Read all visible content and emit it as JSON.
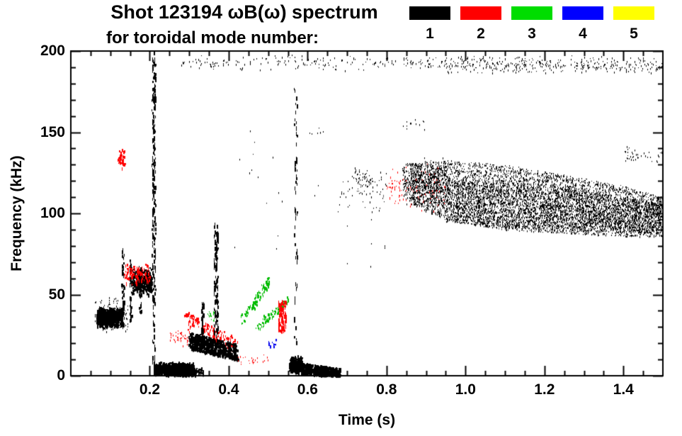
{
  "title": {
    "line1": "Shot 123194 ωB(ω) spectrum",
    "line2": "for toroidal mode number:"
  },
  "legend": {
    "modes": [
      {
        "label": "1",
        "color": "#000000"
      },
      {
        "label": "2",
        "color": "#ff0000"
      },
      {
        "label": "3",
        "color": "#00dd00"
      },
      {
        "label": "4",
        "color": "#0000ff"
      },
      {
        "label": "5",
        "color": "#ffff00"
      }
    ]
  },
  "chart_data": {
    "type": "scatter",
    "title": "Shot 123194 ωB(ω) spectrum for toroidal mode number 1-5",
    "xlabel": "Time (s)",
    "ylabel": "Frequency (kHz)",
    "xlim": [
      0,
      1.5
    ],
    "ylim": [
      0,
      200
    ],
    "xticks": [
      0.2,
      0.4,
      0.6,
      0.8,
      1.0,
      1.2,
      1.4
    ],
    "xtick_labels": [
      "0.2",
      "0.4",
      "0.6",
      "0.8",
      "1.0",
      "1.2",
      "1.4"
    ],
    "yticks": [
      0,
      50,
      100,
      150,
      200
    ],
    "ytick_labels": [
      "0",
      "50",
      "100",
      "150",
      "200"
    ],
    "xtick_minor_step": 0.05,
    "ytick_minor_step": 10,
    "grid": false,
    "legend_position": "top-right",
    "mode_colors": {
      "1": "#000000",
      "2": "#ff0000",
      "3": "#00bb00",
      "4": "#0000ee",
      "5": "#dddd00"
    },
    "clusters": [
      {
        "m": 1,
        "k": "blob",
        "t": [
          0.28,
          0.75
        ],
        "f": [
          188,
          198
        ],
        "n": 130,
        "sz": 1
      },
      {
        "m": 1,
        "k": "blob",
        "t": [
          0.75,
          0.95
        ],
        "f": [
          189,
          197
        ],
        "n": 70,
        "sz": 1
      },
      {
        "m": 1,
        "k": "blob",
        "t": [
          0.95,
          1.28
        ],
        "f": [
          186,
          198
        ],
        "n": 240,
        "sz": 1
      },
      {
        "m": 1,
        "k": "blob",
        "t": [
          1.28,
          1.5
        ],
        "f": [
          186,
          197
        ],
        "n": 150,
        "sz": 1
      },
      {
        "m": 1,
        "k": "blob",
        "t": [
          0.065,
          0.13
        ],
        "f": [
          30,
          43
        ],
        "n": 650,
        "sz": 3
      },
      {
        "m": 1,
        "k": "blob",
        "t": [
          0.06,
          0.145
        ],
        "f": [
          26,
          50
        ],
        "n": 140,
        "sz": 1
      },
      {
        "m": 1,
        "k": "vline",
        "t": [
          0.128,
          0.134
        ],
        "f": [
          30,
          80
        ],
        "n": 55,
        "sz": 2
      },
      {
        "m": 1,
        "k": "vline",
        "t": [
          0.148,
          0.154
        ],
        "f": [
          35,
          72
        ],
        "n": 45,
        "sz": 2
      },
      {
        "m": 1,
        "k": "vline",
        "t": [
          0.172,
          0.178
        ],
        "f": [
          40,
          68
        ],
        "n": 35,
        "sz": 2
      },
      {
        "m": 1,
        "k": "blob",
        "t": [
          0.155,
          0.205
        ],
        "f": [
          50,
          67
        ],
        "n": 320,
        "sz": 3
      },
      {
        "m": 2,
        "k": "blob",
        "t": [
          0.135,
          0.2
        ],
        "f": [
          55,
          72
        ],
        "n": 110,
        "sz": 2
      },
      {
        "m": 2,
        "k": "blob",
        "t": [
          0.118,
          0.136
        ],
        "f": [
          128,
          140
        ],
        "n": 40,
        "sz": 2
      },
      {
        "m": 1,
        "k": "vline",
        "t": [
          0.205,
          0.214
        ],
        "f": [
          62,
          200
        ],
        "n": 190,
        "sz": 2
      },
      {
        "m": 1,
        "k": "vline",
        "t": [
          0.206,
          0.213
        ],
        "f": [
          3,
          62
        ],
        "n": 35,
        "sz": 1
      },
      {
        "m": 1,
        "k": "blob",
        "t": [
          0.21,
          0.31
        ],
        "f": [
          0,
          9
        ],
        "n": 850,
        "sz": 3
      },
      {
        "m": 1,
        "k": "blob",
        "t": [
          0.25,
          0.335
        ],
        "f": [
          0,
          6
        ],
        "n": 220,
        "sz": 2
      },
      {
        "m": 2,
        "k": "diag",
        "from": [
          0.29,
          36
        ],
        "to": [
          0.42,
          19
        ],
        "j": 4,
        "n": 150,
        "sz": 2
      },
      {
        "m": 2,
        "k": "blob",
        "t": [
          0.25,
          0.3
        ],
        "f": [
          18,
          30
        ],
        "n": 50,
        "sz": 1
      },
      {
        "m": 1,
        "k": "diag",
        "from": [
          0.3,
          22
        ],
        "to": [
          0.42,
          15
        ],
        "j": 5,
        "n": 650,
        "sz": 3
      },
      {
        "m": 1,
        "k": "vline",
        "t": [
          0.33,
          0.336
        ],
        "f": [
          20,
          46
        ],
        "n": 40,
        "sz": 2
      },
      {
        "m": 1,
        "k": "vline",
        "t": [
          0.362,
          0.372
        ],
        "f": [
          25,
          95
        ],
        "n": 120,
        "sz": 2
      },
      {
        "m": 3,
        "k": "diag",
        "from": [
          0.43,
          34
        ],
        "to": [
          0.5,
          58
        ],
        "j": 3,
        "n": 85,
        "sz": 2
      },
      {
        "m": 3,
        "k": "diag",
        "from": [
          0.47,
          30
        ],
        "to": [
          0.55,
          48
        ],
        "j": 3,
        "n": 65,
        "sz": 2
      },
      {
        "m": 3,
        "k": "blob",
        "t": [
          0.345,
          0.365
        ],
        "f": [
          33,
          41
        ],
        "n": 18,
        "sz": 1
      },
      {
        "m": 2,
        "k": "vline",
        "t": [
          0.525,
          0.545
        ],
        "f": [
          28,
          47
        ],
        "n": 85,
        "sz": 2
      },
      {
        "m": 2,
        "k": "blob",
        "t": [
          0.42,
          0.5
        ],
        "f": [
          6,
          14
        ],
        "n": 25,
        "sz": 1
      },
      {
        "m": 4,
        "k": "blob",
        "t": [
          0.5,
          0.52
        ],
        "f": [
          17,
          23
        ],
        "n": 12,
        "sz": 2
      },
      {
        "m": 1,
        "k": "diag",
        "from": [
          0.555,
          6
        ],
        "to": [
          0.68,
          2
        ],
        "j": 3,
        "n": 650,
        "sz": 3
      },
      {
        "m": 1,
        "k": "blob",
        "t": [
          0.555,
          0.585
        ],
        "f": [
          2,
          13
        ],
        "n": 220,
        "sz": 3
      },
      {
        "m": 1,
        "k": "vline",
        "t": [
          0.565,
          0.573
        ],
        "f": [
          12,
          178
        ],
        "n": 55,
        "sz": 1
      },
      {
        "m": 1,
        "k": "blob",
        "t": [
          0.68,
          0.8
        ],
        "f": [
          100,
          130
        ],
        "n": 60,
        "sz": 1
      },
      {
        "m": 1,
        "k": "blob",
        "t": [
          0.72,
          0.765
        ],
        "f": [
          116,
          128
        ],
        "n": 45,
        "sz": 1
      },
      {
        "m": 2,
        "k": "blob",
        "t": [
          0.8,
          0.95
        ],
        "f": [
          100,
          132
        ],
        "n": 120,
        "sz": 1
      },
      {
        "m": 1,
        "k": "blob",
        "t": [
          0.84,
          0.95
        ],
        "f": [
          104,
          135
        ],
        "n": 420,
        "sz": 1
      },
      {
        "m": 1,
        "k": "band",
        "bp": [
          [
            0.86,
            106,
            131
          ],
          [
            0.95,
            96,
            133
          ],
          [
            1.1,
            90,
            130
          ],
          [
            1.25,
            88,
            124
          ],
          [
            1.4,
            86,
            117
          ],
          [
            1.5,
            86,
            110
          ]
        ],
        "n": 4800,
        "sz": 1
      },
      {
        "m": 1,
        "k": "band",
        "bp": [
          [
            0.95,
            95,
            121
          ],
          [
            1.2,
            90,
            118
          ],
          [
            1.5,
            88,
            106
          ]
        ],
        "n": 2400,
        "sz": 1
      },
      {
        "m": 1,
        "k": "blob",
        "t": [
          0.4,
          0.8
        ],
        "f": [
          55,
          160
        ],
        "n": 30,
        "sz": 1
      },
      {
        "m": 1,
        "k": "blob",
        "t": [
          1.4,
          1.5
        ],
        "f": [
          130,
          142
        ],
        "n": 40,
        "sz": 1
      },
      {
        "m": 1,
        "k": "blob",
        "t": [
          0.84,
          0.9
        ],
        "f": [
          150,
          160
        ],
        "n": 12,
        "sz": 1
      },
      {
        "m": 1,
        "k": "blob",
        "t": [
          0.6,
          0.65
        ],
        "f": [
          148,
          154
        ],
        "n": 6,
        "sz": 1
      }
    ]
  }
}
